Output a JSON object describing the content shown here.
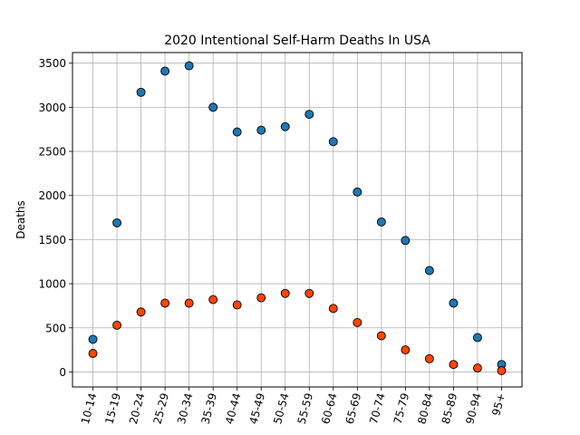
{
  "chart_data": {
    "type": "scatter",
    "title": "2020 Intentional Self-Harm Deaths In USA",
    "xlabel": "",
    "ylabel": "Deaths",
    "categories": [
      "10-14",
      "15-19",
      "20-24",
      "25-29",
      "30-34",
      "35-39",
      "40-44",
      "45-49",
      "50-54",
      "55-59",
      "60-64",
      "65-69",
      "70-74",
      "75-79",
      "80-84",
      "85-89",
      "90-94",
      "95+"
    ],
    "yticks": [
      0,
      500,
      1000,
      1500,
      2000,
      2500,
      3000,
      3500
    ],
    "ylim": [
      -170,
      3620
    ],
    "grid": true,
    "series": [
      {
        "color": "#1f77b4",
        "values": [
          370,
          1690,
          3170,
          3410,
          3470,
          3000,
          2720,
          2740,
          2780,
          2920,
          2610,
          2040,
          1700,
          1490,
          1150,
          780,
          390,
          85
        ]
      },
      {
        "color": "#ff4500",
        "values": [
          210,
          530,
          680,
          780,
          780,
          820,
          760,
          840,
          890,
          890,
          720,
          560,
          410,
          250,
          150,
          85,
          45,
          15
        ]
      }
    ]
  }
}
